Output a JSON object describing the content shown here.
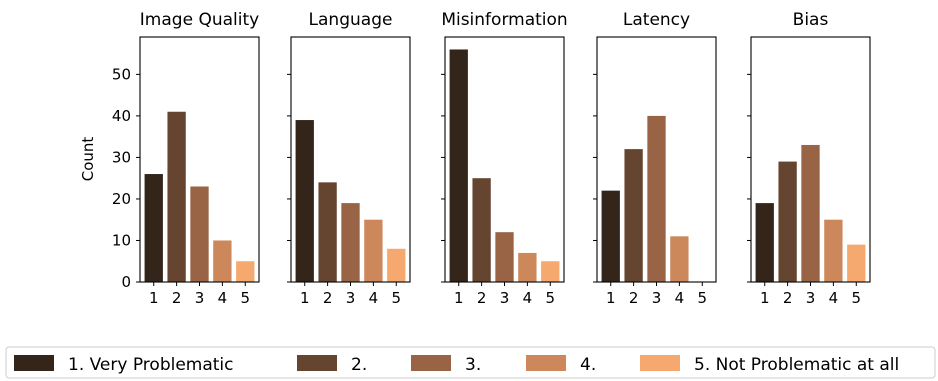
{
  "chart_data": {
    "type": "bar",
    "ylabel": "Count",
    "ylim": [
      0,
      59
    ],
    "yticks": [
      0,
      10,
      20,
      30,
      40,
      50
    ],
    "categories": [
      "1",
      "2",
      "3",
      "4",
      "5"
    ],
    "shared_y": true,
    "legend_placement": "bottom",
    "colors": [
      "#34251a",
      "#664530",
      "#996446",
      "#cc875a",
      "#f5a96f"
    ],
    "legend": [
      "1. Very Problematic",
      "2.",
      "3.",
      "4.",
      "5. Not Problematic at all"
    ],
    "panels": [
      {
        "title": "Image Quality",
        "values": [
          26,
          41,
          23,
          10,
          5
        ]
      },
      {
        "title": "Language",
        "values": [
          39,
          24,
          19,
          15,
          8
        ]
      },
      {
        "title": "Misinformation",
        "values": [
          56,
          25,
          12,
          7,
          5
        ]
      },
      {
        "title": "Latency",
        "values": [
          22,
          32,
          40,
          11,
          0
        ]
      },
      {
        "title": "Bias",
        "values": [
          19,
          29,
          33,
          15,
          9
        ]
      }
    ]
  }
}
